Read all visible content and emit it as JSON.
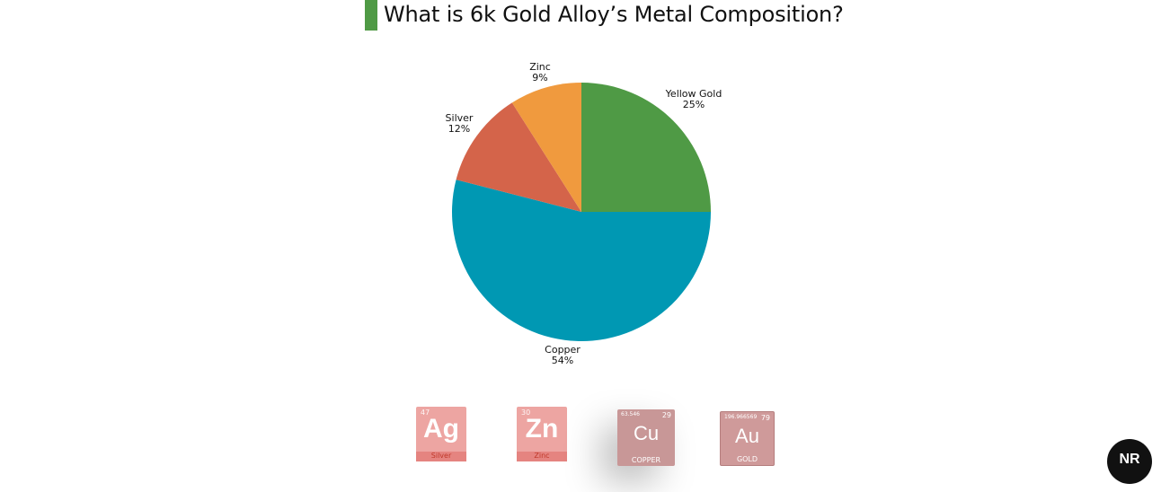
{
  "title": "What is 6k Gold Alloy’s Metal Composition?",
  "colors": {
    "title_accent": "#4f9a45",
    "yellow_gold": "#4f9a45",
    "copper": "#0098b3",
    "silver": "#d4644a",
    "zinc": "#f09a3e"
  },
  "chart_data": {
    "type": "pie",
    "start": "12 o'clock",
    "direction": "clockwise",
    "slices": [
      {
        "label": "Yellow Gold",
        "value": 25,
        "pct_text": "25%",
        "color": "#4f9a45"
      },
      {
        "label": "Copper",
        "value": 54,
        "pct_text": "54%",
        "color": "#0098b3"
      },
      {
        "label": "Silver",
        "value": 12,
        "pct_text": "12%",
        "color": "#d4644a"
      },
      {
        "label": "Zinc",
        "value": 9,
        "pct_text": "9%",
        "color": "#f09a3e"
      }
    ]
  },
  "tiles": {
    "ag": {
      "number": "47",
      "symbol": "Ag",
      "name": "Silver"
    },
    "zn": {
      "number": "30",
      "symbol": "Zn",
      "name": "Zinc"
    },
    "cu": {
      "number": "29",
      "mass": "63.546",
      "symbol": "Cu",
      "name": "COPPER"
    },
    "au": {
      "number": "79",
      "mass": "196.966569",
      "symbol": "Au",
      "name": "GOLD"
    }
  },
  "logo": {
    "text": "NR"
  }
}
